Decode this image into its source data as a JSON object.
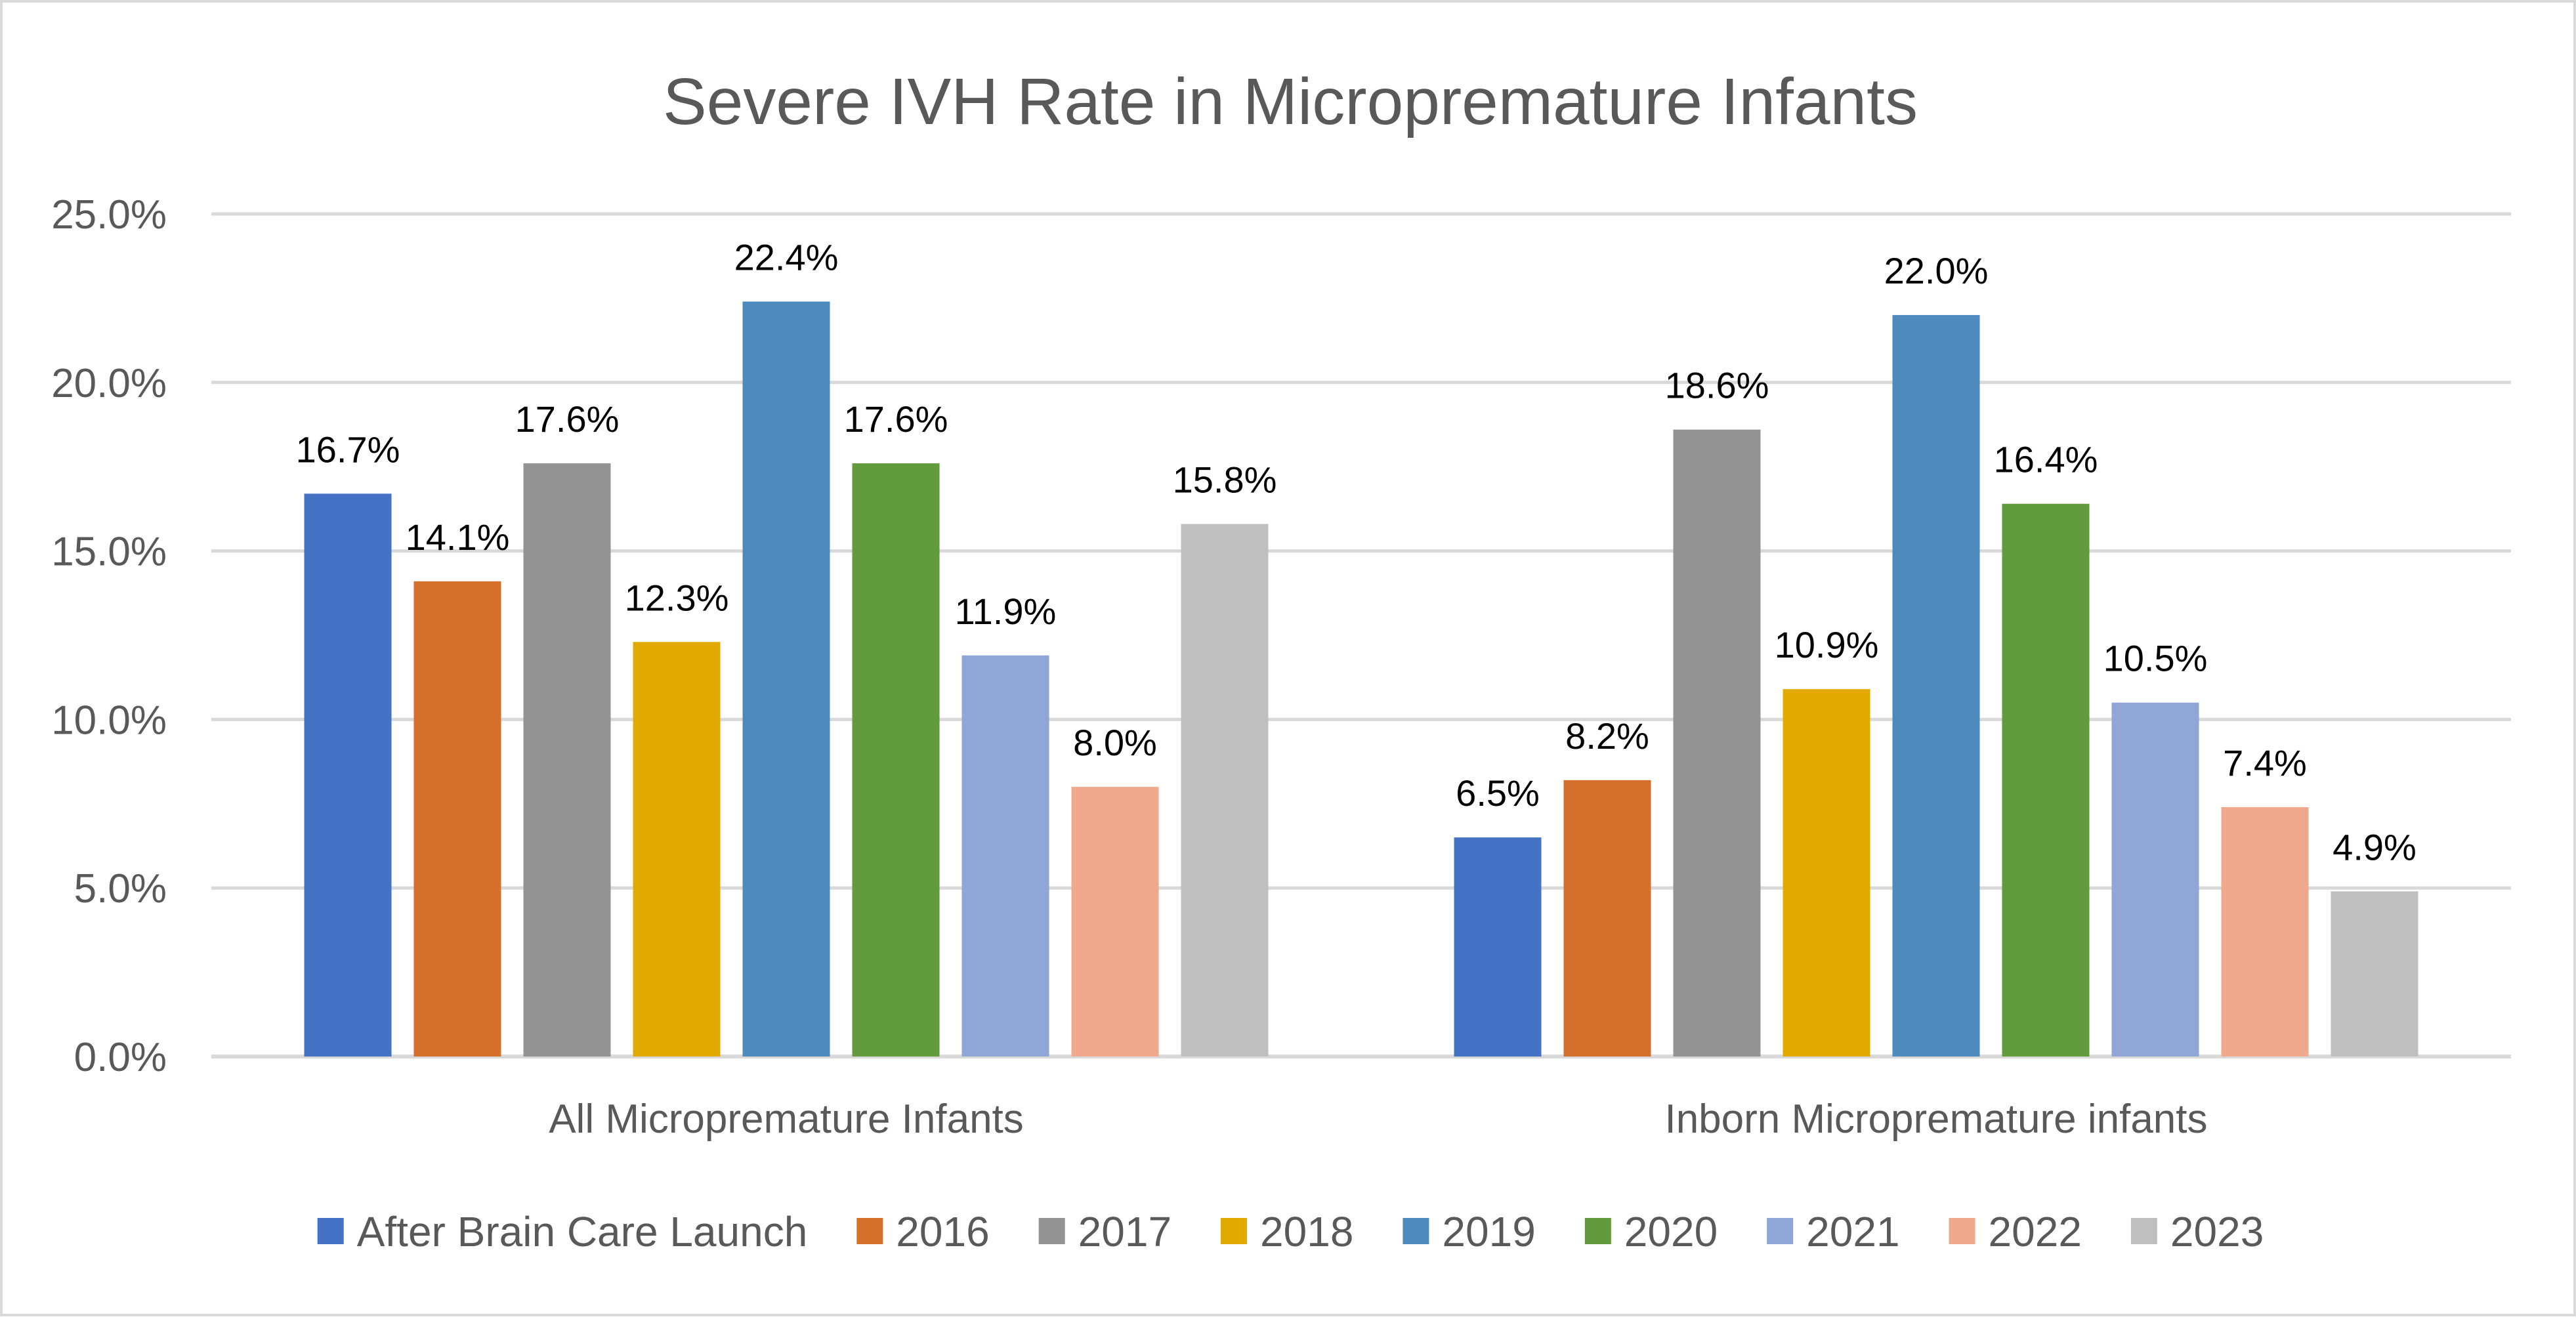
{
  "chart_data": {
    "type": "bar",
    "title": "Severe IVH Rate in Micropremature Infants",
    "xlabel": "",
    "ylabel": "",
    "ylim": [
      0,
      25
    ],
    "y_ticks": [
      0,
      5,
      10,
      15,
      20,
      25
    ],
    "y_tick_labels": [
      "0.0%",
      "5.0%",
      "10.0%",
      "15.0%",
      "20.0%",
      "25.0%"
    ],
    "grid": true,
    "legend_position": "bottom",
    "categories": [
      "All Micropremature Infants",
      "Inborn Micropremature infants"
    ],
    "series": [
      {
        "name": "After Brain Care Launch",
        "color": "#4472c4",
        "values": [
          16.7,
          6.5
        ],
        "labels": [
          "16.7%",
          "6.5%"
        ]
      },
      {
        "name": "2016",
        "color": "#d4702b",
        "values": [
          14.1,
          8.2
        ],
        "labels": [
          "14.1%",
          "8.2%"
        ]
      },
      {
        "name": "2017",
        "color": "#939393",
        "values": [
          17.6,
          18.6
        ],
        "labels": [
          "17.6%",
          "18.6%"
        ]
      },
      {
        "name": "2018",
        "color": "#e2aa00",
        "values": [
          12.3,
          10.9
        ],
        "labels": [
          "12.3%",
          "10.9%"
        ]
      },
      {
        "name": "2019",
        "color": "#4e8abe",
        "values": [
          22.4,
          22.0
        ],
        "labels": [
          "22.4%",
          "22.0%"
        ]
      },
      {
        "name": "2020",
        "color": "#629b3e",
        "values": [
          17.6,
          16.4
        ],
        "labels": [
          "17.6%",
          "16.4%"
        ]
      },
      {
        "name": "2021",
        "color": "#8fa6d6",
        "values": [
          11.9,
          10.5
        ],
        "labels": [
          "11.9%",
          "10.5%"
        ]
      },
      {
        "name": "2022",
        "color": "#f0a98c",
        "values": [
          8.0,
          7.4
        ],
        "labels": [
          "8.0%",
          "7.4%"
        ]
      },
      {
        "name": "2023",
        "color": "#bfbfbf",
        "values": [
          15.8,
          4.9
        ],
        "labels": [
          "15.8%",
          "4.9%"
        ]
      }
    ]
  }
}
